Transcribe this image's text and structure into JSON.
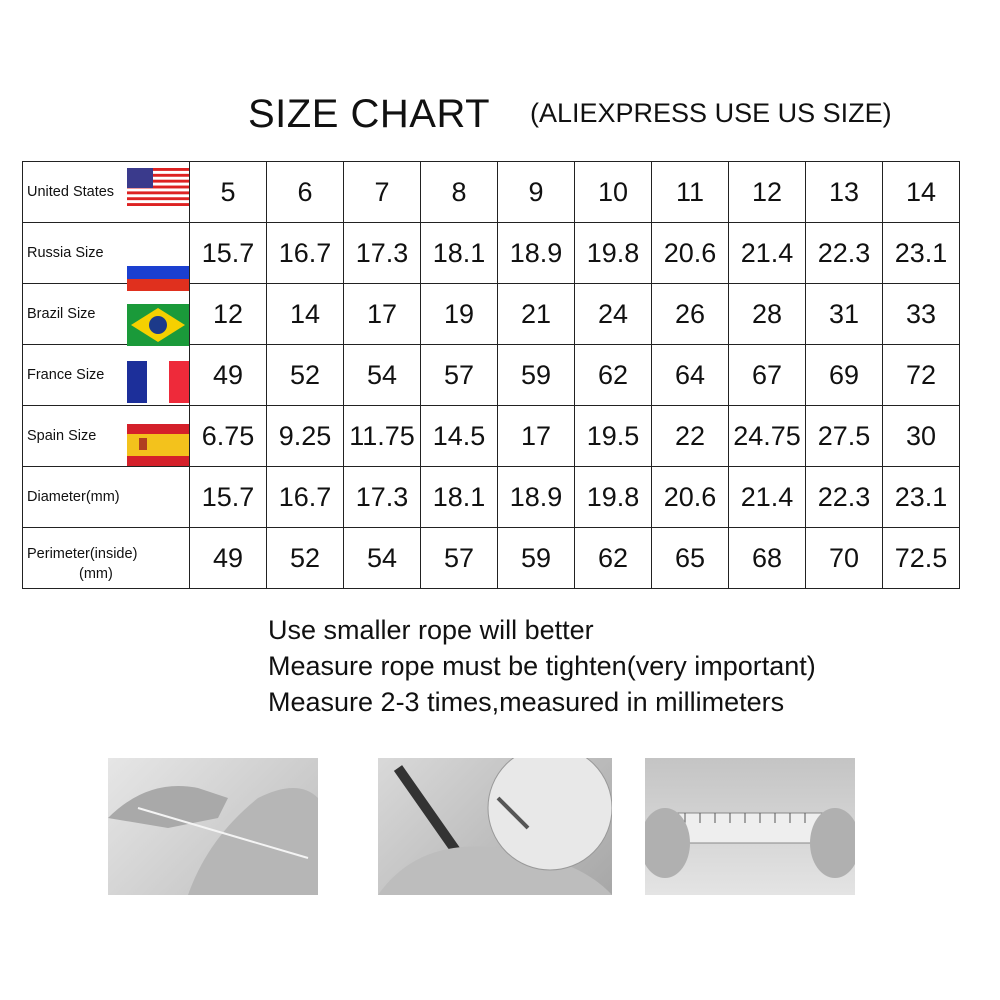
{
  "title": "SIZE CHART",
  "subtitle": "(ALIEXPRESS USE US SIZE)",
  "table": {
    "rows": [
      {
        "label": "United States",
        "flag": "us-flag-icon",
        "values": [
          "5",
          "6",
          "7",
          "8",
          "9",
          "10",
          "11",
          "12",
          "13",
          "14"
        ]
      },
      {
        "label": "Russia Size",
        "flag": "russia-flag-icon",
        "values": [
          "15.7",
          "16.7",
          "17.3",
          "18.1",
          "18.9",
          "19.8",
          "20.6",
          "21.4",
          "22.3",
          "23.1"
        ]
      },
      {
        "label": "Brazil Size",
        "flag": "brazil-flag-icon",
        "values": [
          "12",
          "14",
          "17",
          "19",
          "21",
          "24",
          "26",
          "28",
          "31",
          "33"
        ]
      },
      {
        "label": "France Size",
        "flag": "france-flag-icon",
        "values": [
          "49",
          "52",
          "54",
          "57",
          "59",
          "62",
          "64",
          "67",
          "69",
          "72"
        ]
      },
      {
        "label": "Spain Size",
        "flag": "spain-flag-icon",
        "values": [
          "6.75",
          "9.25",
          "11.75",
          "14.5",
          "17",
          "19.5",
          "22",
          "24.75",
          "27.5",
          "30"
        ]
      },
      {
        "label": "Diameter(mm)",
        "values": [
          "15.7",
          "16.7",
          "17.3",
          "18.1",
          "18.9",
          "19.8",
          "20.6",
          "21.4",
          "22.3",
          "23.1"
        ]
      },
      {
        "label": "Perimeter(inside)",
        "label2": "(mm)",
        "values": [
          "49",
          "52",
          "54",
          "57",
          "59",
          "62",
          "65",
          "68",
          "70",
          "72.5"
        ]
      }
    ]
  },
  "notes": [
    "Use smaller rope will better",
    "Measure rope must be tighten(very important)",
    "Measure 2-3 times,measured in millimeters"
  ],
  "photos": [
    "hand-wrap-rope-photo",
    "mark-rope-pen-photo",
    "ruler-measure-photo"
  ]
}
